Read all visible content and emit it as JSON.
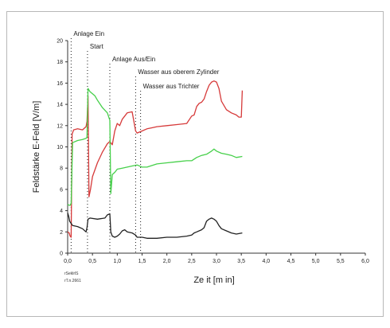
{
  "chart_data": {
    "type": "line",
    "xlabel": "Ze it [m in]",
    "ylabel": "Feldstärke E-Feld [V/m]",
    "xlim": [
      0,
      6
    ],
    "ylim": [
      0,
      20
    ],
    "xticks": [
      "0,0",
      "0,5",
      "1,0",
      "1,5",
      "2,0",
      "2,5",
      "3,0",
      "3,5",
      "4,0",
      "4,5",
      "5,0",
      "5,5",
      "6,0"
    ],
    "yticks": [
      "0",
      "2",
      "4",
      "6",
      "8",
      "10",
      "12",
      "14",
      "16",
      "18",
      "20"
    ],
    "grid": false,
    "footnote": [
      "rSeklrlS",
      "rT.n.2661"
    ],
    "events": [
      {
        "label": "Anlage Ein",
        "x": 0.07
      },
      {
        "label": "Start",
        "x": 0.4
      },
      {
        "label": "Anlage Aus/Ein",
        "x": 0.85
      },
      {
        "label": "Wasser aus oberem Zylinder",
        "x": 1.37
      },
      {
        "label": "Wasser aus Trichter",
        "x": 1.47
      }
    ],
    "series": [
      {
        "color": "#d63a3a",
        "x": [
          0.0,
          0.03,
          0.05,
          0.07,
          0.09,
          0.12,
          0.2,
          0.3,
          0.37,
          0.39,
          0.41,
          0.43,
          0.46,
          0.5,
          0.6,
          0.7,
          0.8,
          0.85,
          0.9,
          0.95,
          1.0,
          1.05,
          1.1,
          1.2,
          1.3,
          1.37,
          1.4,
          1.5,
          1.6,
          1.7,
          1.8,
          2.0,
          2.2,
          2.4,
          2.5,
          2.55,
          2.6,
          2.65,
          2.7,
          2.75,
          2.8,
          2.85,
          2.9,
          2.95,
          3.0,
          3.05,
          3.1,
          3.2,
          3.3,
          3.4,
          3.45,
          3.5,
          3.52
        ],
        "y": [
          2.0,
          1.9,
          1.6,
          1.5,
          11.2,
          11.6,
          11.7,
          11.6,
          11.9,
          12.4,
          14.8,
          5.3,
          6.0,
          7.2,
          8.5,
          9.5,
          10.3,
          10.5,
          10.2,
          11.5,
          12.2,
          12.0,
          12.6,
          13.2,
          13.3,
          11.5,
          11.3,
          11.5,
          11.7,
          11.8,
          11.9,
          12.0,
          12.1,
          12.2,
          12.9,
          13.0,
          13.8,
          14.1,
          14.2,
          14.5,
          15.2,
          15.8,
          16.1,
          16.2,
          16.1,
          15.5,
          14.3,
          13.5,
          13.2,
          13.0,
          12.8,
          12.8,
          15.3
        ]
      },
      {
        "color": "#46d04a",
        "x": [
          0.0,
          0.03,
          0.05,
          0.07,
          0.1,
          0.2,
          0.3,
          0.37,
          0.39,
          0.41,
          0.45,
          0.5,
          0.55,
          0.6,
          0.7,
          0.8,
          0.85,
          0.87,
          0.9,
          0.95,
          1.0,
          1.1,
          1.2,
          1.3,
          1.4,
          1.5,
          1.6,
          1.8,
          2.0,
          2.2,
          2.4,
          2.5,
          2.6,
          2.7,
          2.8,
          2.9,
          2.95,
          3.0,
          3.1,
          3.2,
          3.3,
          3.4,
          3.52
        ],
        "y": [
          4.6,
          4.5,
          4.5,
          4.7,
          10.4,
          10.6,
          10.7,
          10.8,
          10.9,
          15.5,
          15.2,
          15.0,
          14.8,
          14.4,
          13.7,
          13.2,
          12.5,
          5.6,
          7.4,
          7.6,
          7.9,
          8.0,
          8.1,
          8.2,
          8.3,
          8.1,
          8.1,
          8.4,
          8.5,
          8.6,
          8.7,
          8.7,
          9.0,
          9.2,
          9.3,
          9.6,
          9.8,
          9.6,
          9.4,
          9.3,
          9.2,
          9.0,
          9.1
        ]
      },
      {
        "color": "#222222",
        "x": [
          0.0,
          0.02,
          0.04,
          0.07,
          0.1,
          0.2,
          0.3,
          0.37,
          0.39,
          0.41,
          0.45,
          0.6,
          0.75,
          0.8,
          0.85,
          0.87,
          0.9,
          0.95,
          1.0,
          1.05,
          1.1,
          1.15,
          1.2,
          1.3,
          1.37,
          1.4,
          1.5,
          1.6,
          1.8,
          2.0,
          2.2,
          2.4,
          2.5,
          2.55,
          2.6,
          2.7,
          2.75,
          2.8,
          2.85,
          2.9,
          2.95,
          3.0,
          3.05,
          3.1,
          3.2,
          3.3,
          3.4,
          3.52
        ],
        "y": [
          3.8,
          3.5,
          3.0,
          2.8,
          2.6,
          2.5,
          2.3,
          2.0,
          2.4,
          3.2,
          3.3,
          3.2,
          3.3,
          3.6,
          3.7,
          2.0,
          1.6,
          1.5,
          1.6,
          1.8,
          2.1,
          2.2,
          2.0,
          1.9,
          1.7,
          1.5,
          1.5,
          1.4,
          1.4,
          1.5,
          1.5,
          1.6,
          1.7,
          1.9,
          2.0,
          2.2,
          2.4,
          3.0,
          3.2,
          3.3,
          3.2,
          3.0,
          2.6,
          2.3,
          2.1,
          1.9,
          1.8,
          1.9
        ]
      }
    ]
  }
}
